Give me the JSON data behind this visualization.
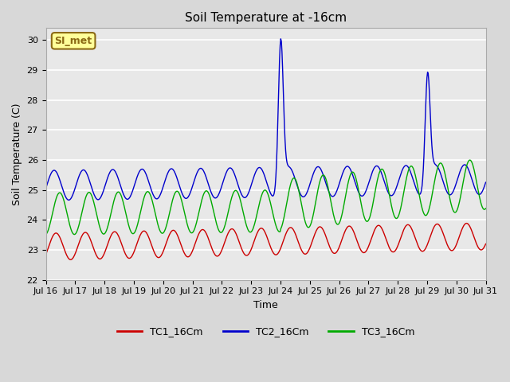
{
  "title": "Soil Temperature at -16cm",
  "xlabel": "Time",
  "ylabel": "Soil Temperature (C)",
  "ylim": [
    22.0,
    30.4
  ],
  "yticks": [
    22.0,
    23.0,
    24.0,
    25.0,
    26.0,
    27.0,
    28.0,
    29.0,
    30.0
  ],
  "fig_bg_color": "#d8d8d8",
  "ax_bg_color": "#e8e8e8",
  "grid_color": "#ffffff",
  "label_box_text": "SI_met",
  "label_box_bg": "#ffff99",
  "label_box_border": "#8b6914",
  "series_colors": [
    "#cc0000",
    "#0000cc",
    "#00aa00"
  ],
  "series_labels": [
    "TC1_16Cm",
    "TC2_16Cm",
    "TC3_16Cm"
  ],
  "xtick_labels": [
    "Jul 16",
    "Jul 17",
    "Jul 18",
    "Jul 19",
    "Jul 20",
    "Jul 21",
    "Jul 22",
    "Jul 23",
    "Jul 24",
    "Jul 25",
    "Jul 26",
    "Jul 27",
    "Jul 28",
    "Jul 29",
    "Jul 30",
    "Jul 31"
  ],
  "xtick_positions": [
    0,
    1,
    2,
    3,
    4,
    5,
    6,
    7,
    8,
    9,
    10,
    11,
    12,
    13,
    14,
    15
  ],
  "xlim": [
    0,
    15
  ],
  "n_days": 15
}
